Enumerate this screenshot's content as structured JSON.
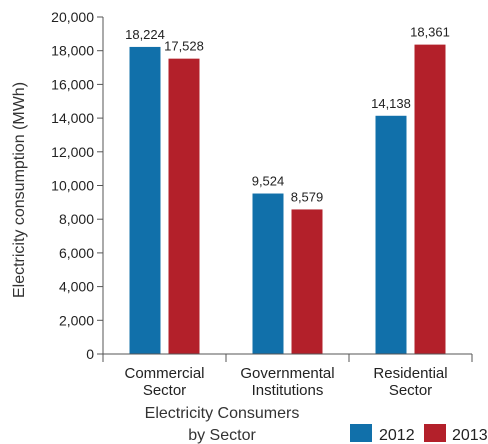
{
  "chart_data": {
    "type": "bar",
    "title": "",
    "ylabel": "Electricity consumption (MWh)",
    "xlabel_lines": [
      "Electricity Consumers",
      "by Sector"
    ],
    "ylim": [
      0,
      20000
    ],
    "grid": false,
    "legend_position": "bottom-right",
    "y_ticks": [
      0,
      2000,
      4000,
      6000,
      8000,
      10000,
      12000,
      14000,
      16000,
      18000,
      20000
    ],
    "y_tick_labels": [
      "0",
      "2,000",
      "4,000",
      "6,000",
      "8,000",
      "10,000",
      "12,000",
      "14,000",
      "16,000",
      "18,000",
      "20,000"
    ],
    "categories": [
      {
        "lines": [
          "Commercial",
          "Sector"
        ]
      },
      {
        "lines": [
          "Governmental",
          "Institutions"
        ]
      },
      {
        "lines": [
          "Residential",
          "Sector"
        ]
      }
    ],
    "series": [
      {
        "name": "2012",
        "color": "#1170aa",
        "values": [
          18224,
          9524,
          14138
        ],
        "value_labels": [
          "18,224",
          "9,524",
          "14,138"
        ]
      },
      {
        "name": "2013",
        "color": "#b3202a",
        "values": [
          17528,
          8579,
          18361
        ],
        "value_labels": [
          "17,528",
          "8,579",
          "18,361"
        ]
      }
    ]
  }
}
